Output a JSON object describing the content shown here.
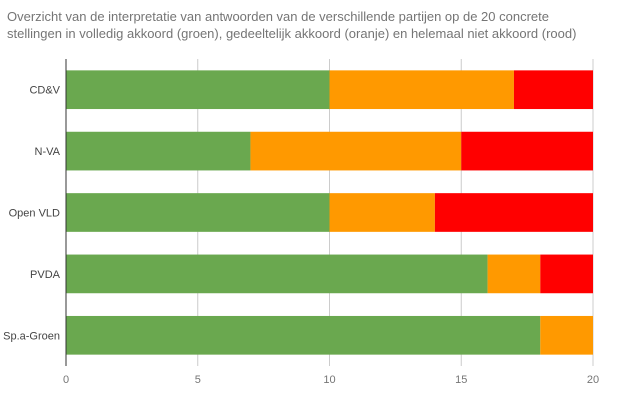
{
  "chart_data": {
    "type": "bar",
    "orientation": "horizontal",
    "stacked": true,
    "title_lines": [
      "Overzicht van de interpretatie van antwoorden van de verschillende partijen op de 20 concrete",
      "stellingen in volledig akkoord (groen), gedeeltelijk akkoord (oranje) en helemaal niet akkoord (rood)"
    ],
    "categories": [
      "CD&V",
      "N-VA",
      "Open VLD",
      "PVDA",
      "Sp.a-Groen"
    ],
    "series": [
      {
        "color": "#6aa84f",
        "values": [
          10,
          7,
          10,
          16,
          18
        ]
      },
      {
        "color": "#ff9900",
        "values": [
          7,
          8,
          4,
          2,
          2
        ]
      },
      {
        "color": "#ff0000",
        "values": [
          3,
          5,
          6,
          2,
          0
        ]
      }
    ],
    "xlim": [
      0,
      20
    ],
    "xticks": [
      0,
      5,
      10,
      15,
      20
    ],
    "grid": true,
    "xlabel": "",
    "ylabel": ""
  }
}
